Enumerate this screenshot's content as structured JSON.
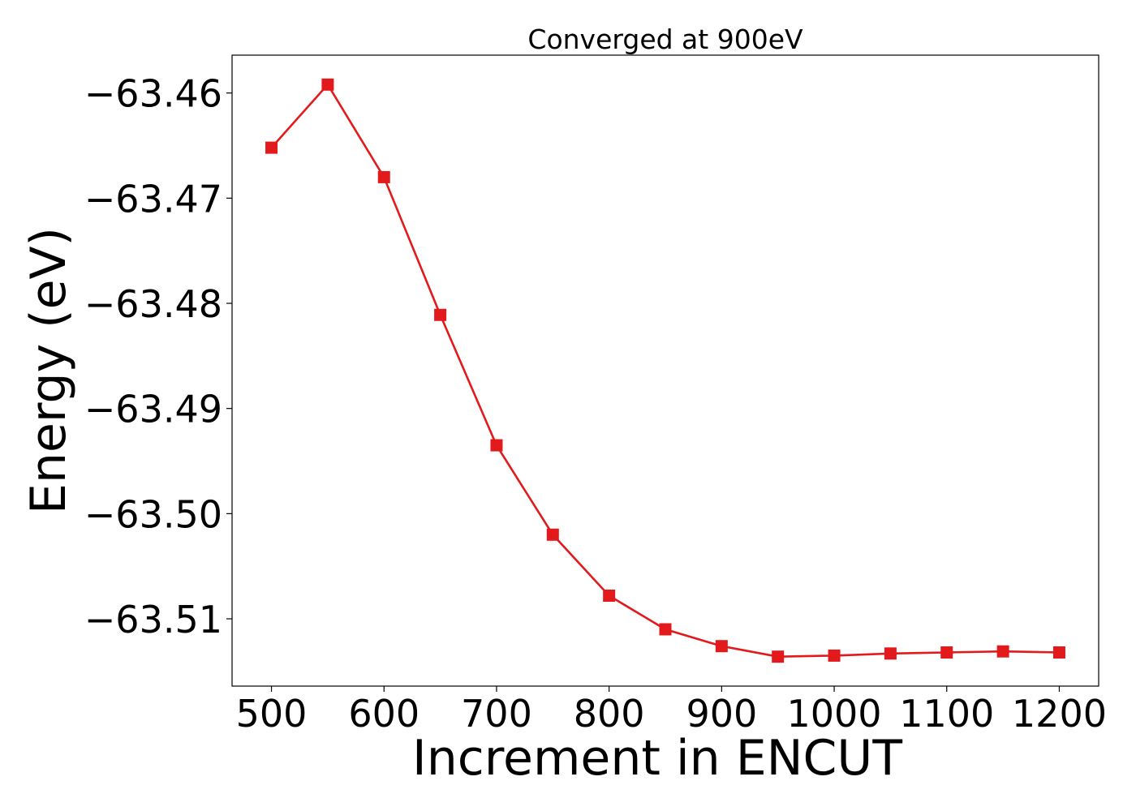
{
  "chart_data": {
    "type": "line",
    "title": "Converged at 900eV",
    "xlabel": "Increment in ENCUT",
    "ylabel": "Energy (eV)",
    "xlim": [
      465,
      1235
    ],
    "ylim": [
      -63.5164,
      -63.4564
    ],
    "x_ticks": [
      500,
      600,
      700,
      800,
      900,
      1000,
      1100,
      1200
    ],
    "y_ticks": [
      -63.51,
      -63.5,
      -63.49,
      -63.48,
      -63.47,
      -63.46
    ],
    "y_tick_labels": [
      "−63.51",
      "−63.50",
      "−63.49",
      "−63.48",
      "−63.47",
      "−63.46"
    ],
    "grid": false,
    "series": [
      {
        "color": "#e31a1c",
        "marker": "square",
        "x": [
          500,
          550,
          600,
          650,
          700,
          750,
          800,
          850,
          900,
          950,
          1000,
          1050,
          1100,
          1150,
          1200
        ],
        "y": [
          -63.4652,
          -63.4592,
          -63.468,
          -63.4811,
          -63.4935,
          -63.502,
          -63.5078,
          -63.511,
          -63.5126,
          -63.5136,
          -63.5135,
          -63.5133,
          -63.5132,
          -63.5131,
          -63.5132
        ]
      }
    ]
  }
}
